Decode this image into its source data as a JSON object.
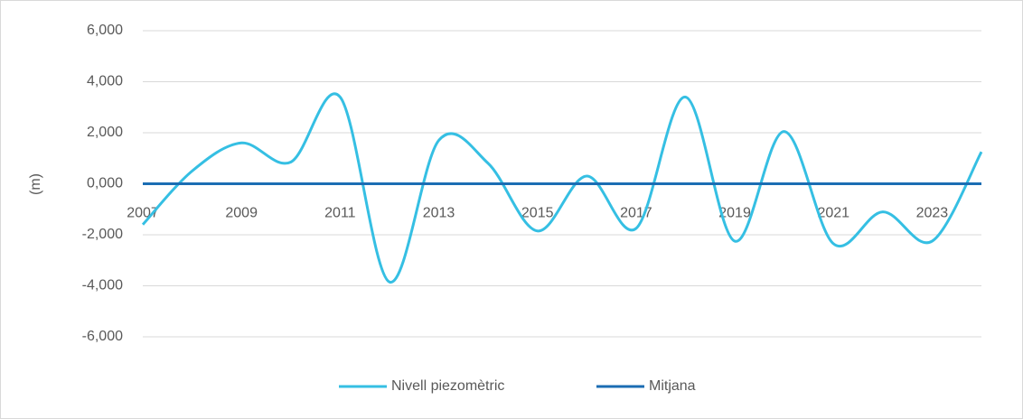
{
  "chart_data": {
    "type": "line",
    "y_label": "(m)",
    "x": [
      2007,
      2008,
      2009,
      2010,
      2011,
      2012,
      2013,
      2014,
      2015,
      2016,
      2017,
      2018,
      2019,
      2020,
      2021,
      2022,
      2023,
      2024
    ],
    "series": [
      {
        "name": "Nivell piezomètric",
        "color": "#35bfe3",
        "values": [
          -1600,
          500,
          1600,
          850,
          3400,
          -3850,
          1700,
          800,
          -1850,
          300,
          -1750,
          3400,
          -2250,
          2050,
          -2350,
          -1100,
          -2250,
          1250
        ]
      },
      {
        "name": "Mitjana",
        "color": "#1b6db3",
        "values": [
          0,
          0,
          0,
          0,
          0,
          0,
          0,
          0,
          0,
          0,
          0,
          0,
          0,
          0,
          0,
          0,
          0,
          0
        ]
      }
    ],
    "xlim": [
      2007,
      2024
    ],
    "xticks": [
      2007,
      2009,
      2011,
      2013,
      2015,
      2017,
      2019,
      2021,
      2023
    ],
    "ylim": [
      -6000,
      6000
    ],
    "yticks": [
      {
        "value": -6000,
        "label": "-6,000"
      },
      {
        "value": -4000,
        "label": "-4,000"
      },
      {
        "value": -2000,
        "label": "-2,000"
      },
      {
        "value": 0,
        "label": "0,000"
      },
      {
        "value": 2000,
        "label": "2,000"
      },
      {
        "value": 4000,
        "label": "4,000"
      },
      {
        "value": 6000,
        "label": "6,000"
      }
    ],
    "grid": true,
    "smooth": true,
    "legend": "bottom"
  }
}
